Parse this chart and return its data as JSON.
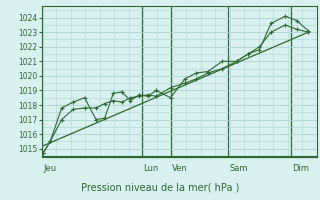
{
  "bg_color": "#d8f0f0",
  "grid_color": "#aed4d4",
  "line_color": "#2d6a2d",
  "title": "Pression niveau de la mer( hPa )",
  "ylim": [
    1014.5,
    1024.8
  ],
  "yticks": [
    1015,
    1016,
    1017,
    1018,
    1019,
    1020,
    1021,
    1022,
    1023,
    1024
  ],
  "day_labels": [
    "Jeu",
    "Lun",
    "Ven",
    "Sam",
    "Dim"
  ],
  "day_positions": [
    0.0,
    3.5,
    4.5,
    6.5,
    8.7
  ],
  "series1_x": [
    0.05,
    0.3,
    0.7,
    1.1,
    1.5,
    1.9,
    2.2,
    2.5,
    2.8,
    3.1,
    3.4,
    3.7,
    4.0,
    4.5,
    5.0,
    5.4,
    5.8,
    6.3,
    6.8,
    7.2,
    7.6,
    8.0,
    8.5,
    8.9,
    9.3
  ],
  "series1_y": [
    1014.7,
    1015.5,
    1017.0,
    1017.7,
    1017.8,
    1017.8,
    1018.1,
    1018.3,
    1018.2,
    1018.5,
    1018.6,
    1018.7,
    1018.6,
    1019.2,
    1019.5,
    1019.8,
    1020.2,
    1020.5,
    1021.0,
    1021.5,
    1022.0,
    1023.0,
    1023.5,
    1023.2,
    1023.0
  ],
  "series2_x": [
    0.05,
    0.3,
    0.7,
    1.1,
    1.5,
    1.9,
    2.2,
    2.5,
    2.8,
    3.1,
    3.4,
    3.7,
    4.0,
    4.5,
    5.0,
    5.4,
    5.8,
    6.3,
    6.8,
    7.2,
    7.6,
    8.0,
    8.5,
    8.9,
    9.3
  ],
  "series2_y": [
    1014.7,
    1015.5,
    1017.8,
    1018.2,
    1018.5,
    1017.0,
    1017.1,
    1018.8,
    1018.9,
    1018.3,
    1018.7,
    1018.6,
    1019.0,
    1018.5,
    1019.8,
    1020.2,
    1020.3,
    1021.0,
    1021.0,
    1021.5,
    1021.8,
    1023.6,
    1024.1,
    1023.8,
    1023.1
  ],
  "trend_x": [
    0.05,
    9.3
  ],
  "trend_y": [
    1015.2,
    1023.0
  ],
  "xmin": 0.0,
  "xmax": 9.6,
  "fig_width": 3.2,
  "fig_height": 2.0,
  "dpi": 100
}
